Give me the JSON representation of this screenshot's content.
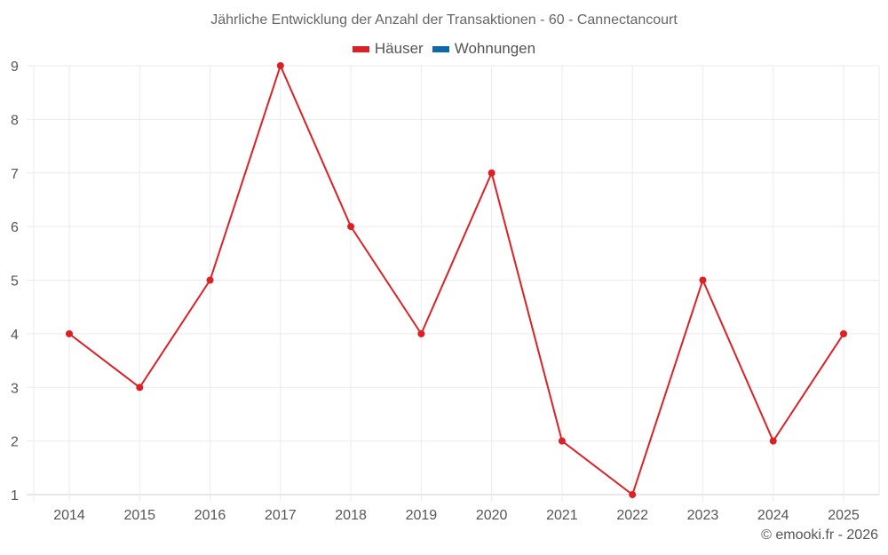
{
  "chart_data": {
    "type": "line",
    "title": "Jährliche Entwicklung der Anzahl der Transaktionen - 60 - Cannectancourt",
    "xlabel": "",
    "ylabel": "",
    "categories": [
      "2014",
      "2015",
      "2016",
      "2017",
      "2018",
      "2019",
      "2020",
      "2021",
      "2022",
      "2023",
      "2024",
      "2025"
    ],
    "series": [
      {
        "name": "Häuser",
        "color": "#dd2026",
        "values": [
          4,
          3,
          5,
          9,
          6,
          4,
          7,
          2,
          1,
          5,
          2,
          4
        ]
      },
      {
        "name": "Wohnungen",
        "color": "#0f68a8",
        "values": []
      }
    ],
    "ylim": [
      1,
      9
    ],
    "yticks": [
      "1",
      "2",
      "3",
      "4",
      "5",
      "6",
      "7",
      "8",
      "9"
    ],
    "grid": true,
    "legend_position": "top"
  },
  "header": {
    "title": "Jährliche Entwicklung der Anzahl der Transaktionen - 60 - Cannectancourt"
  },
  "legend": {
    "items": [
      {
        "label": "Häuser",
        "color": "#dd2026"
      },
      {
        "label": "Wohnungen",
        "color": "#0f68a8"
      }
    ]
  },
  "footer": {
    "credit": "© emooki.fr - 2026"
  }
}
